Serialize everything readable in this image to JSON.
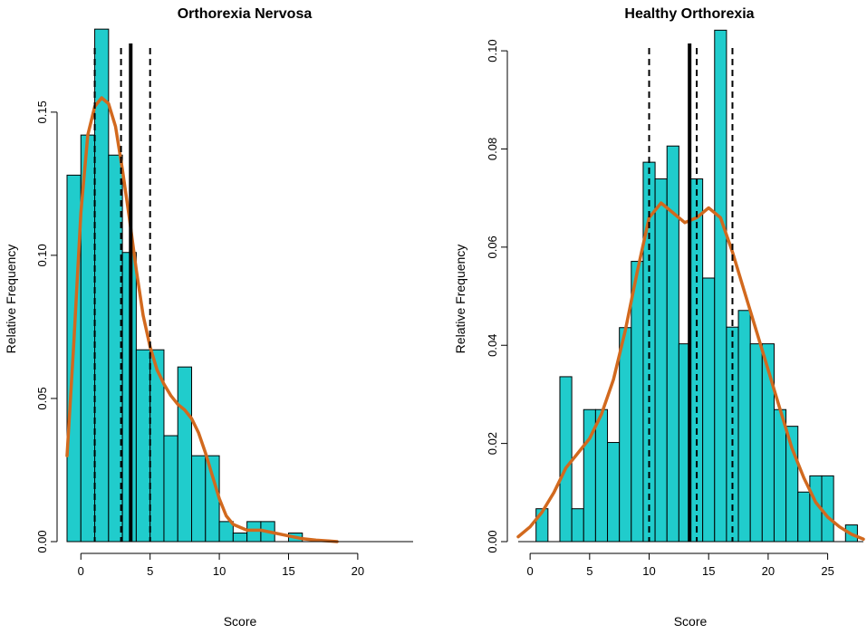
{
  "chart_data": [
    {
      "type": "bar",
      "title": "Orthorexia Nervosa",
      "xlabel": "Score",
      "ylabel": "Relative Frequency",
      "xlim": [
        -1,
        24
      ],
      "ylim": [
        0,
        0.18
      ],
      "xticks": [
        0,
        5,
        10,
        15,
        20
      ],
      "yticks": [
        0.0,
        0.05,
        0.1,
        0.15
      ],
      "ytick_labels": [
        "0.00",
        "0.05",
        "0.10",
        "0.15"
      ],
      "bin_starts": [
        -1,
        0,
        1,
        2,
        3,
        4,
        5,
        6,
        7,
        8,
        9,
        10,
        11,
        12,
        13,
        14,
        15,
        16
      ],
      "bin_width": 1,
      "values": [
        0.128,
        0.142,
        0.179,
        0.135,
        0.101,
        0.067,
        0.067,
        0.037,
        0.061,
        0.03,
        0.03,
        0.007,
        0.003,
        0.007,
        0.007,
        0.0,
        0.003,
        0.0
      ],
      "fill_color": "#20cccc",
      "density_color": "#d2691e",
      "density": {
        "x": [
          -1,
          -0.5,
          0,
          0.5,
          1,
          1.5,
          2,
          2.5,
          3,
          3.5,
          4,
          4.5,
          5,
          5.5,
          6,
          6.5,
          7,
          7.5,
          8,
          8.5,
          9,
          9.5,
          10,
          10.5,
          11,
          12,
          13,
          14,
          15,
          16,
          17,
          18,
          18.5
        ],
        "y": [
          0.03,
          0.07,
          0.115,
          0.142,
          0.152,
          0.155,
          0.153,
          0.145,
          0.13,
          0.113,
          0.095,
          0.079,
          0.068,
          0.06,
          0.055,
          0.051,
          0.048,
          0.046,
          0.043,
          0.038,
          0.031,
          0.023,
          0.015,
          0.009,
          0.006,
          0.004,
          0.004,
          0.003,
          0.002,
          0.001,
          0.0005,
          0.0002,
          0.0
        ]
      },
      "mean": 3.6,
      "quartiles": [
        1.0,
        2.9,
        5.0
      ]
    },
    {
      "type": "bar",
      "title": "Healthy Orthorexia",
      "xlabel": "Score",
      "ylabel": "Relative Frequency",
      "xlim": [
        -1,
        28
      ],
      "ylim": [
        0,
        0.105
      ],
      "xticks": [
        0,
        5,
        10,
        15,
        20,
        25
      ],
      "yticks": [
        0.0,
        0.02,
        0.04,
        0.06,
        0.08,
        0.1
      ],
      "ytick_labels": [
        "0.00",
        "0.02",
        "0.04",
        "0.06",
        "0.08",
        "0.10"
      ],
      "bin_starts": [
        0.5,
        1.5,
        2.5,
        3.5,
        4.5,
        5.5,
        6.5,
        7.5,
        8.5,
        9.5,
        10.5,
        11.5,
        12.5,
        13.5,
        14.5,
        15.5,
        16.5,
        17.5,
        18.5,
        19.5,
        20.5,
        21.5,
        22.5,
        23.5,
        24.5,
        25.5,
        26.5
      ],
      "bin_width": 1,
      "values": [
        0.0067,
        0.0,
        0.0336,
        0.0067,
        0.0269,
        0.0269,
        0.0202,
        0.0436,
        0.0571,
        0.0773,
        0.0739,
        0.0806,
        0.0403,
        0.0739,
        0.0537,
        0.1042,
        0.0437,
        0.0471,
        0.0403,
        0.0403,
        0.0269,
        0.0235,
        0.0101,
        0.0134,
        0.0134,
        0.0,
        0.0034
      ],
      "fill_color": "#20cccc",
      "density_color": "#d2691e",
      "density": {
        "x": [
          -1,
          0,
          1,
          2,
          3,
          4,
          5,
          6,
          7,
          8,
          9,
          10,
          11,
          12,
          13,
          14,
          15,
          16,
          17,
          18,
          19,
          20,
          21,
          22,
          23,
          24,
          25,
          26,
          27,
          28
        ],
        "y": [
          0.001,
          0.003,
          0.006,
          0.01,
          0.015,
          0.018,
          0.021,
          0.026,
          0.033,
          0.043,
          0.055,
          0.066,
          0.069,
          0.067,
          0.065,
          0.066,
          0.068,
          0.066,
          0.059,
          0.051,
          0.043,
          0.035,
          0.027,
          0.019,
          0.013,
          0.008,
          0.005,
          0.003,
          0.0015,
          0.0005
        ]
      },
      "mean": 13.4,
      "quartiles": [
        10.0,
        14.0,
        17.0
      ]
    }
  ]
}
